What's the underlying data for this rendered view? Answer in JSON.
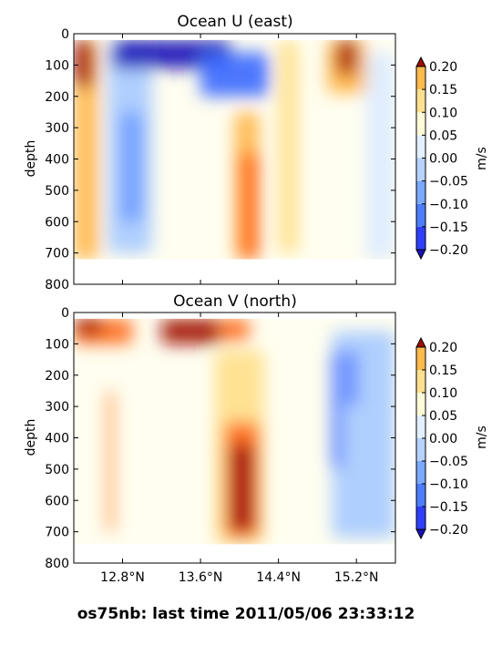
{
  "figure": {
    "caption": "os75nb: last time 2011/05/06 23:33:12"
  },
  "chart_data": [
    {
      "type": "heatmap",
      "title": "Ocean U (east)",
      "xlabel": "",
      "ylabel": "depth",
      "xlim": [
        12.3,
        15.6
      ],
      "ylim": [
        800,
        0
      ],
      "ytick_labels": [
        "0",
        "100",
        "200",
        "300",
        "400",
        "500",
        "600",
        "700",
        "800"
      ],
      "xtick_labels": [],
      "colorbar": {
        "label": "m/s",
        "levels": [
          -0.2,
          -0.15,
          -0.1,
          -0.05,
          0.0,
          0.05,
          0.1,
          0.15,
          0.2
        ],
        "tick_labels": [
          "0.20",
          "0.15",
          "0.10",
          "0.05",
          "0.00",
          "−0.05",
          "−0.10",
          "−0.15",
          "−0.20"
        ],
        "extend": "both"
      },
      "data_extent": {
        "y_top": 20,
        "y_bottom": 720
      },
      "features": [
        {
          "lat": [
            12.3,
            12.55
          ],
          "depth": [
            20,
            720
          ],
          "value": 0.11
        },
        {
          "lat": [
            12.3,
            12.5
          ],
          "depth": [
            20,
            170
          ],
          "value": 0.22
        },
        {
          "lat": [
            12.65,
            13.1
          ],
          "depth": [
            20,
            700
          ],
          "value": -0.07
        },
        {
          "lat": [
            12.78,
            13.0
          ],
          "depth": [
            250,
            600
          ],
          "value": -0.13
        },
        {
          "lat": [
            12.7,
            13.9
          ],
          "depth": [
            20,
            110
          ],
          "value": -0.22
        },
        {
          "lat": [
            13.6,
            14.3
          ],
          "depth": [
            60,
            200
          ],
          "value": -0.2
        },
        {
          "lat": [
            13.95,
            14.2
          ],
          "depth": [
            250,
            720
          ],
          "value": 0.11
        },
        {
          "lat": [
            14.0,
            14.2
          ],
          "depth": [
            380,
            720
          ],
          "value": 0.17
        },
        {
          "lat": [
            14.4,
            14.6
          ],
          "depth": [
            20,
            700
          ],
          "value": 0.06
        },
        {
          "lat": [
            14.9,
            15.3
          ],
          "depth": [
            20,
            190
          ],
          "value": 0.12
        },
        {
          "lat": [
            15.0,
            15.2
          ],
          "depth": [
            20,
            130
          ],
          "value": 0.2
        },
        {
          "lat": [
            15.3,
            15.6
          ],
          "depth": [
            60,
            720
          ],
          "value": -0.04
        }
      ]
    },
    {
      "type": "heatmap",
      "title": "Ocean V (north)",
      "xlabel": "",
      "ylabel": "depth",
      "xlim": [
        12.3,
        15.6
      ],
      "ylim": [
        800,
        0
      ],
      "ytick_labels": [
        "0",
        "100",
        "200",
        "300",
        "400",
        "500",
        "600",
        "700",
        "800"
      ],
      "xtick_labels": [
        "12.8°N",
        "13.6°N",
        "14.4°N",
        "15.2°N"
      ],
      "xticks": [
        12.8,
        13.6,
        14.4,
        15.2
      ],
      "colorbar": {
        "label": "m/s",
        "levels": [
          -0.2,
          -0.15,
          -0.1,
          -0.05,
          0.0,
          0.05,
          0.1,
          0.15,
          0.2
        ],
        "tick_labels": [
          "0.20",
          "0.15",
          "0.10",
          "0.05",
          "0.00",
          "−0.05",
          "−0.10",
          "−0.15",
          "−0.20"
        ],
        "extend": "both"
      },
      "data_extent": {
        "y_top": 20,
        "y_bottom": 740
      },
      "features": [
        {
          "lat": [
            12.3,
            12.9
          ],
          "depth": [
            20,
            100
          ],
          "value": 0.18
        },
        {
          "lat": [
            12.3,
            12.6
          ],
          "depth": [
            20,
            70
          ],
          "value": 0.24
        },
        {
          "lat": [
            13.2,
            13.8
          ],
          "depth": [
            20,
            100
          ],
          "value": 0.2
        },
        {
          "lat": [
            13.8,
            14.1
          ],
          "depth": [
            20,
            90
          ],
          "value": 0.18
        },
        {
          "lat": [
            13.75,
            14.25
          ],
          "depth": [
            120,
            740
          ],
          "value": 0.08
        },
        {
          "lat": [
            13.85,
            14.2
          ],
          "depth": [
            350,
            720
          ],
          "value": 0.15
        },
        {
          "lat": [
            13.9,
            14.15
          ],
          "depth": [
            420,
            700
          ],
          "value": 0.2
        },
        {
          "lat": [
            12.65,
            12.7
          ],
          "depth": [
            250,
            700
          ],
          "value": 0.15
        },
        {
          "lat": [
            14.95,
            15.6
          ],
          "depth": [
            60,
            720
          ],
          "value": -0.09
        },
        {
          "lat": [
            14.95,
            15.05
          ],
          "depth": [
            120,
            500
          ],
          "value": -0.2
        },
        {
          "lat": [
            15.1,
            15.2
          ],
          "depth": [
            120,
            300
          ],
          "value": -0.16
        }
      ]
    }
  ]
}
